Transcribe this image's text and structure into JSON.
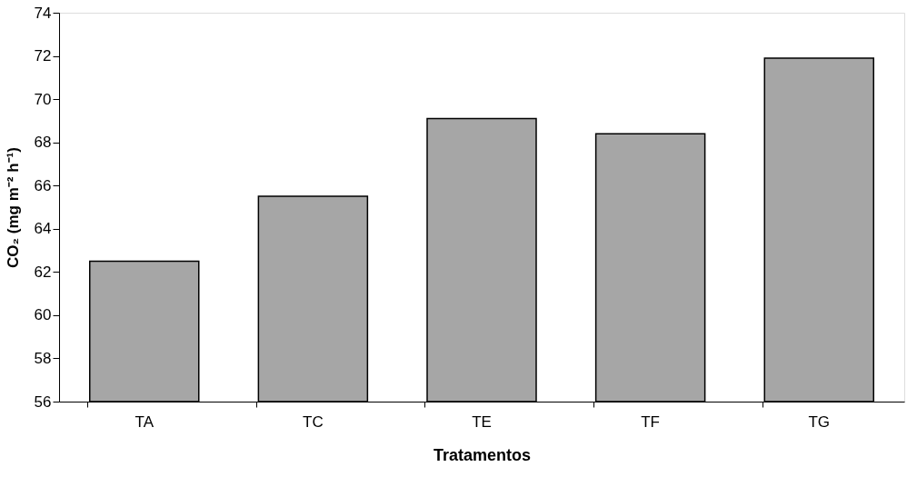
{
  "chart_data": {
    "type": "bar",
    "xlabel": "Tratamentos",
    "ylabel": "CO₂ (mg m⁻² h⁻¹)",
    "categories": [
      "TA",
      "TC",
      "TE",
      "TF",
      "TG"
    ],
    "values": [
      62.5,
      65.5,
      69.1,
      68.4,
      71.9
    ],
    "color": "#a6a6a6",
    "ylim": [
      56,
      74
    ],
    "yticks": [
      56,
      58,
      60,
      62,
      64,
      66,
      68,
      70,
      72,
      74
    ],
    "grid": false
  }
}
